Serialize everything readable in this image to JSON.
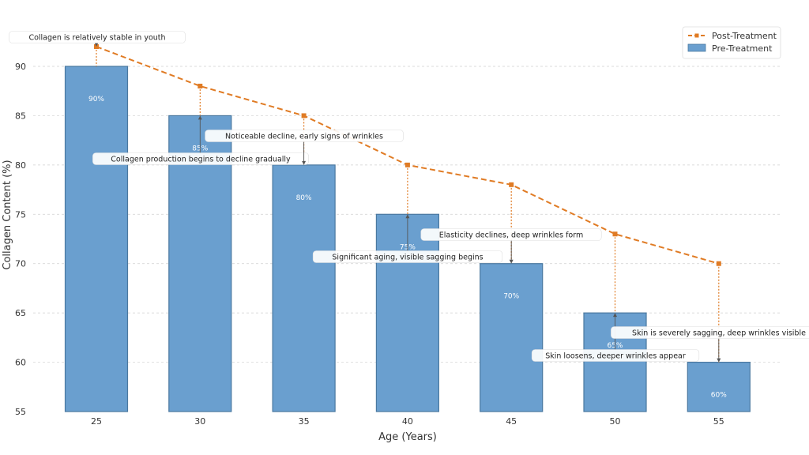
{
  "chart_data": {
    "type": "bar",
    "xlabel": "Age (Years)",
    "ylabel": "Collagen Content (%)",
    "ylim": [
      55,
      93
    ],
    "yticks": [
      55,
      60,
      65,
      70,
      75,
      80,
      85,
      90
    ],
    "categories": [
      "25",
      "30",
      "35",
      "40",
      "45",
      "50",
      "55"
    ],
    "grid": "horizontal dashed",
    "legend_position": "top-right",
    "series": [
      {
        "name": "Pre-Treatment",
        "type": "bar",
        "values": [
          90,
          85,
          80,
          75,
          70,
          65,
          60
        ],
        "labels": [
          "90%",
          "85%",
          "80%",
          "75%",
          "70%",
          "65%",
          "60%"
        ],
        "color": "#6a9fcf"
      },
      {
        "name": "Post-Treatment",
        "type": "line",
        "values": [
          92,
          88,
          85,
          80,
          78,
          73,
          70
        ],
        "color": "#e07b24"
      }
    ],
    "annotations": [
      {
        "category": "25",
        "target": 92,
        "text": "Collagen is relatively stable in youth"
      },
      {
        "category": "30",
        "target": 85,
        "text": "Collagen production begins to decline gradually"
      },
      {
        "category": "35",
        "target": 80,
        "text": "Noticeable decline, early signs of wrinkles"
      },
      {
        "category": "40",
        "target": 75,
        "text": "Significant aging, visible sagging begins"
      },
      {
        "category": "45",
        "target": 70,
        "text": "Elasticity declines, deep wrinkles form"
      },
      {
        "category": "50",
        "target": 65,
        "text": "Skin loosens, deeper wrinkles appear"
      },
      {
        "category": "55",
        "target": 60,
        "text": "Skin is severely sagging, deep wrinkles visible"
      }
    ]
  }
}
